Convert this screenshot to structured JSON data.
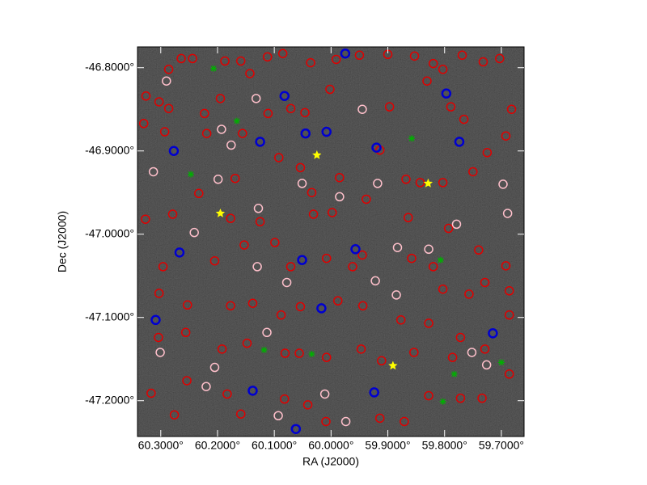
{
  "chart_data": {
    "type": "scatter",
    "x_label": "RA (J2000)",
    "y_label": "Dec (J2000)",
    "xlim": [
      60.341,
      59.66
    ],
    "ylim": [
      -47.243,
      -46.775
    ],
    "xticks": [
      {
        "value": 60.3,
        "label": "60.3000°"
      },
      {
        "value": 60.2,
        "label": "60.2000°"
      },
      {
        "value": 60.1,
        "label": "60.1000°"
      },
      {
        "value": 60.0,
        "label": "60.0000°"
      },
      {
        "value": 59.9,
        "label": "59.9000°"
      },
      {
        "value": 59.8,
        "label": "59.8000°"
      },
      {
        "value": 59.7,
        "label": "59.7000°"
      }
    ],
    "yticks": [
      {
        "value": -46.8,
        "label": "-46.8000°"
      },
      {
        "value": -46.9,
        "label": "-46.9000°"
      },
      {
        "value": -47.0,
        "label": "-47.0000°"
      },
      {
        "value": -47.1,
        "label": "-47.1000°"
      },
      {
        "value": -47.2,
        "label": "-47.2000°"
      }
    ],
    "series": [
      {
        "color": "#e00000",
        "marker": "circle",
        "x": [
          60.264,
          60.244,
          60.286,
          60.187,
          60.159,
          60.143,
          60.112,
          60.085,
          60.036,
          59.991,
          59.95,
          59.9,
          59.853,
          59.82,
          59.803,
          59.769,
          59.732,
          59.703,
          60.326,
          60.303,
          60.286,
          60.223,
          60.195,
          60.156,
          60.111,
          60.071,
          60.046,
          60.002,
          59.897,
          59.831,
          59.789,
          59.766,
          59.682,
          59.692,
          59.725,
          59.75,
          60.33,
          60.293,
          60.219,
          60.169,
          60.092,
          60.054,
          60.034,
          59.985,
          59.914,
          59.868,
          59.843,
          59.803,
          60.327,
          60.233,
          60.279,
          60.177,
          60.125,
          60.031,
          59.998,
          59.938,
          59.864,
          59.793,
          59.74,
          59.692,
          60.296,
          60.205,
          60.153,
          60.099,
          60.071,
          60.008,
          59.962,
          59.945,
          59.858,
          59.82,
          59.803,
          59.757,
          59.729,
          59.686,
          60.303,
          60.253,
          60.177,
          60.138,
          60.088,
          60.054,
          59.988,
          59.944,
          59.877,
          59.828,
          59.772,
          59.686,
          60.304,
          60.256,
          60.192,
          60.148,
          60.081,
          60.056,
          60.008,
          59.947,
          59.911,
          59.854,
          59.786,
          59.729,
          60.317,
          60.276,
          60.254,
          60.183,
          60.159,
          60.082,
          60.041,
          60.009,
          59.914,
          59.871,
          59.828,
          59.772,
          59.734,
          59.686
        ],
        "y": [
          -46.789,
          -46.789,
          -46.802,
          -46.792,
          -46.792,
          -46.807,
          -46.787,
          -46.783,
          -46.794,
          -46.79,
          -46.785,
          -46.784,
          -46.786,
          -46.795,
          -46.802,
          -46.785,
          -46.793,
          -46.789,
          -46.834,
          -46.841,
          -46.849,
          -46.855,
          -46.837,
          -46.879,
          -46.855,
          -46.849,
          -46.854,
          -46.826,
          -46.847,
          -46.816,
          -46.847,
          -46.862,
          -46.85,
          -46.882,
          -46.902,
          -46.925,
          -46.867,
          -46.877,
          -46.879,
          -46.933,
          -46.908,
          -46.92,
          -46.95,
          -46.932,
          -46.899,
          -46.934,
          -46.938,
          -46.938,
          -46.982,
          -46.951,
          -46.976,
          -46.981,
          -46.985,
          -46.976,
          -46.974,
          -46.958,
          -46.98,
          -46.993,
          -47.019,
          -47.038,
          -47.039,
          -47.032,
          -47.013,
          -47.01,
          -47.039,
          -47.029,
          -47.039,
          -47.025,
          -47.029,
          -47.039,
          -47.066,
          -47.072,
          -47.058,
          -47.068,
          -47.071,
          -47.085,
          -47.086,
          -47.083,
          -47.097,
          -47.087,
          -47.08,
          -47.086,
          -47.103,
          -47.107,
          -47.124,
          -47.097,
          -47.124,
          -47.118,
          -47.138,
          -47.131,
          -47.143,
          -47.143,
          -47.148,
          -47.138,
          -47.152,
          -47.142,
          -47.148,
          -47.138,
          -47.191,
          -47.217,
          -47.176,
          -47.192,
          -47.216,
          -47.198,
          -47.205,
          -47.225,
          -47.221,
          -47.225,
          -47.194,
          -47.197,
          -47.197,
          -47.168
        ]
      },
      {
        "color": "#ffc0cb",
        "marker": "circle",
        "x": [
          60.29,
          60.132,
          59.945,
          60.193,
          60.176,
          60.313,
          60.199,
          59.985,
          60.128,
          60.051,
          59.918,
          59.689,
          59.779,
          60.241,
          60.13,
          59.922,
          59.885,
          60.078,
          60.113,
          60.301,
          60.205,
          60.22,
          60.093,
          59.752,
          59.726,
          60.011,
          59.974,
          59.697,
          59.883,
          59.828
        ],
        "y": [
          -46.816,
          -46.837,
          -46.85,
          -46.874,
          -46.893,
          -46.925,
          -46.934,
          -46.955,
          -46.969,
          -46.939,
          -46.939,
          -46.975,
          -46.988,
          -46.998,
          -47.039,
          -47.056,
          -47.073,
          -47.058,
          -47.118,
          -47.142,
          -47.16,
          -47.183,
          -47.218,
          -47.142,
          -47.157,
          -47.192,
          -47.225,
          -46.94,
          -47.016,
          -47.018
        ]
      },
      {
        "color": "#0000d0",
        "marker": "ring",
        "x": [
          60.277,
          60.082,
          60.125,
          60.045,
          60.008,
          59.92,
          59.774,
          60.267,
          60.051,
          60.017,
          60.309,
          59.957,
          59.924,
          60.138,
          60.062,
          59.975,
          59.715,
          59.797
        ],
        "y": [
          -46.9,
          -46.834,
          -46.889,
          -46.879,
          -46.877,
          -46.896,
          -46.889,
          -47.022,
          -47.031,
          -47.089,
          -47.103,
          -47.018,
          -47.19,
          -47.188,
          -47.234,
          -46.783,
          -47.119,
          -46.831
        ]
      },
      {
        "color": "#00b000",
        "marker": "cross",
        "x": [
          60.207,
          60.166,
          60.247,
          59.858,
          59.807,
          60.034,
          60.118,
          59.783,
          59.7,
          59.803
        ],
        "y": [
          -46.801,
          -46.864,
          -46.928,
          -46.885,
          -47.031,
          -47.144,
          -47.139,
          -47.168,
          -47.154,
          -47.201
        ]
      },
      {
        "color": "#ffff00",
        "marker": "star",
        "x": [
          60.025,
          59.829,
          60.195,
          59.891
        ],
        "y": [
          -46.905,
          -46.939,
          -46.975,
          -47.158
        ]
      }
    ]
  }
}
